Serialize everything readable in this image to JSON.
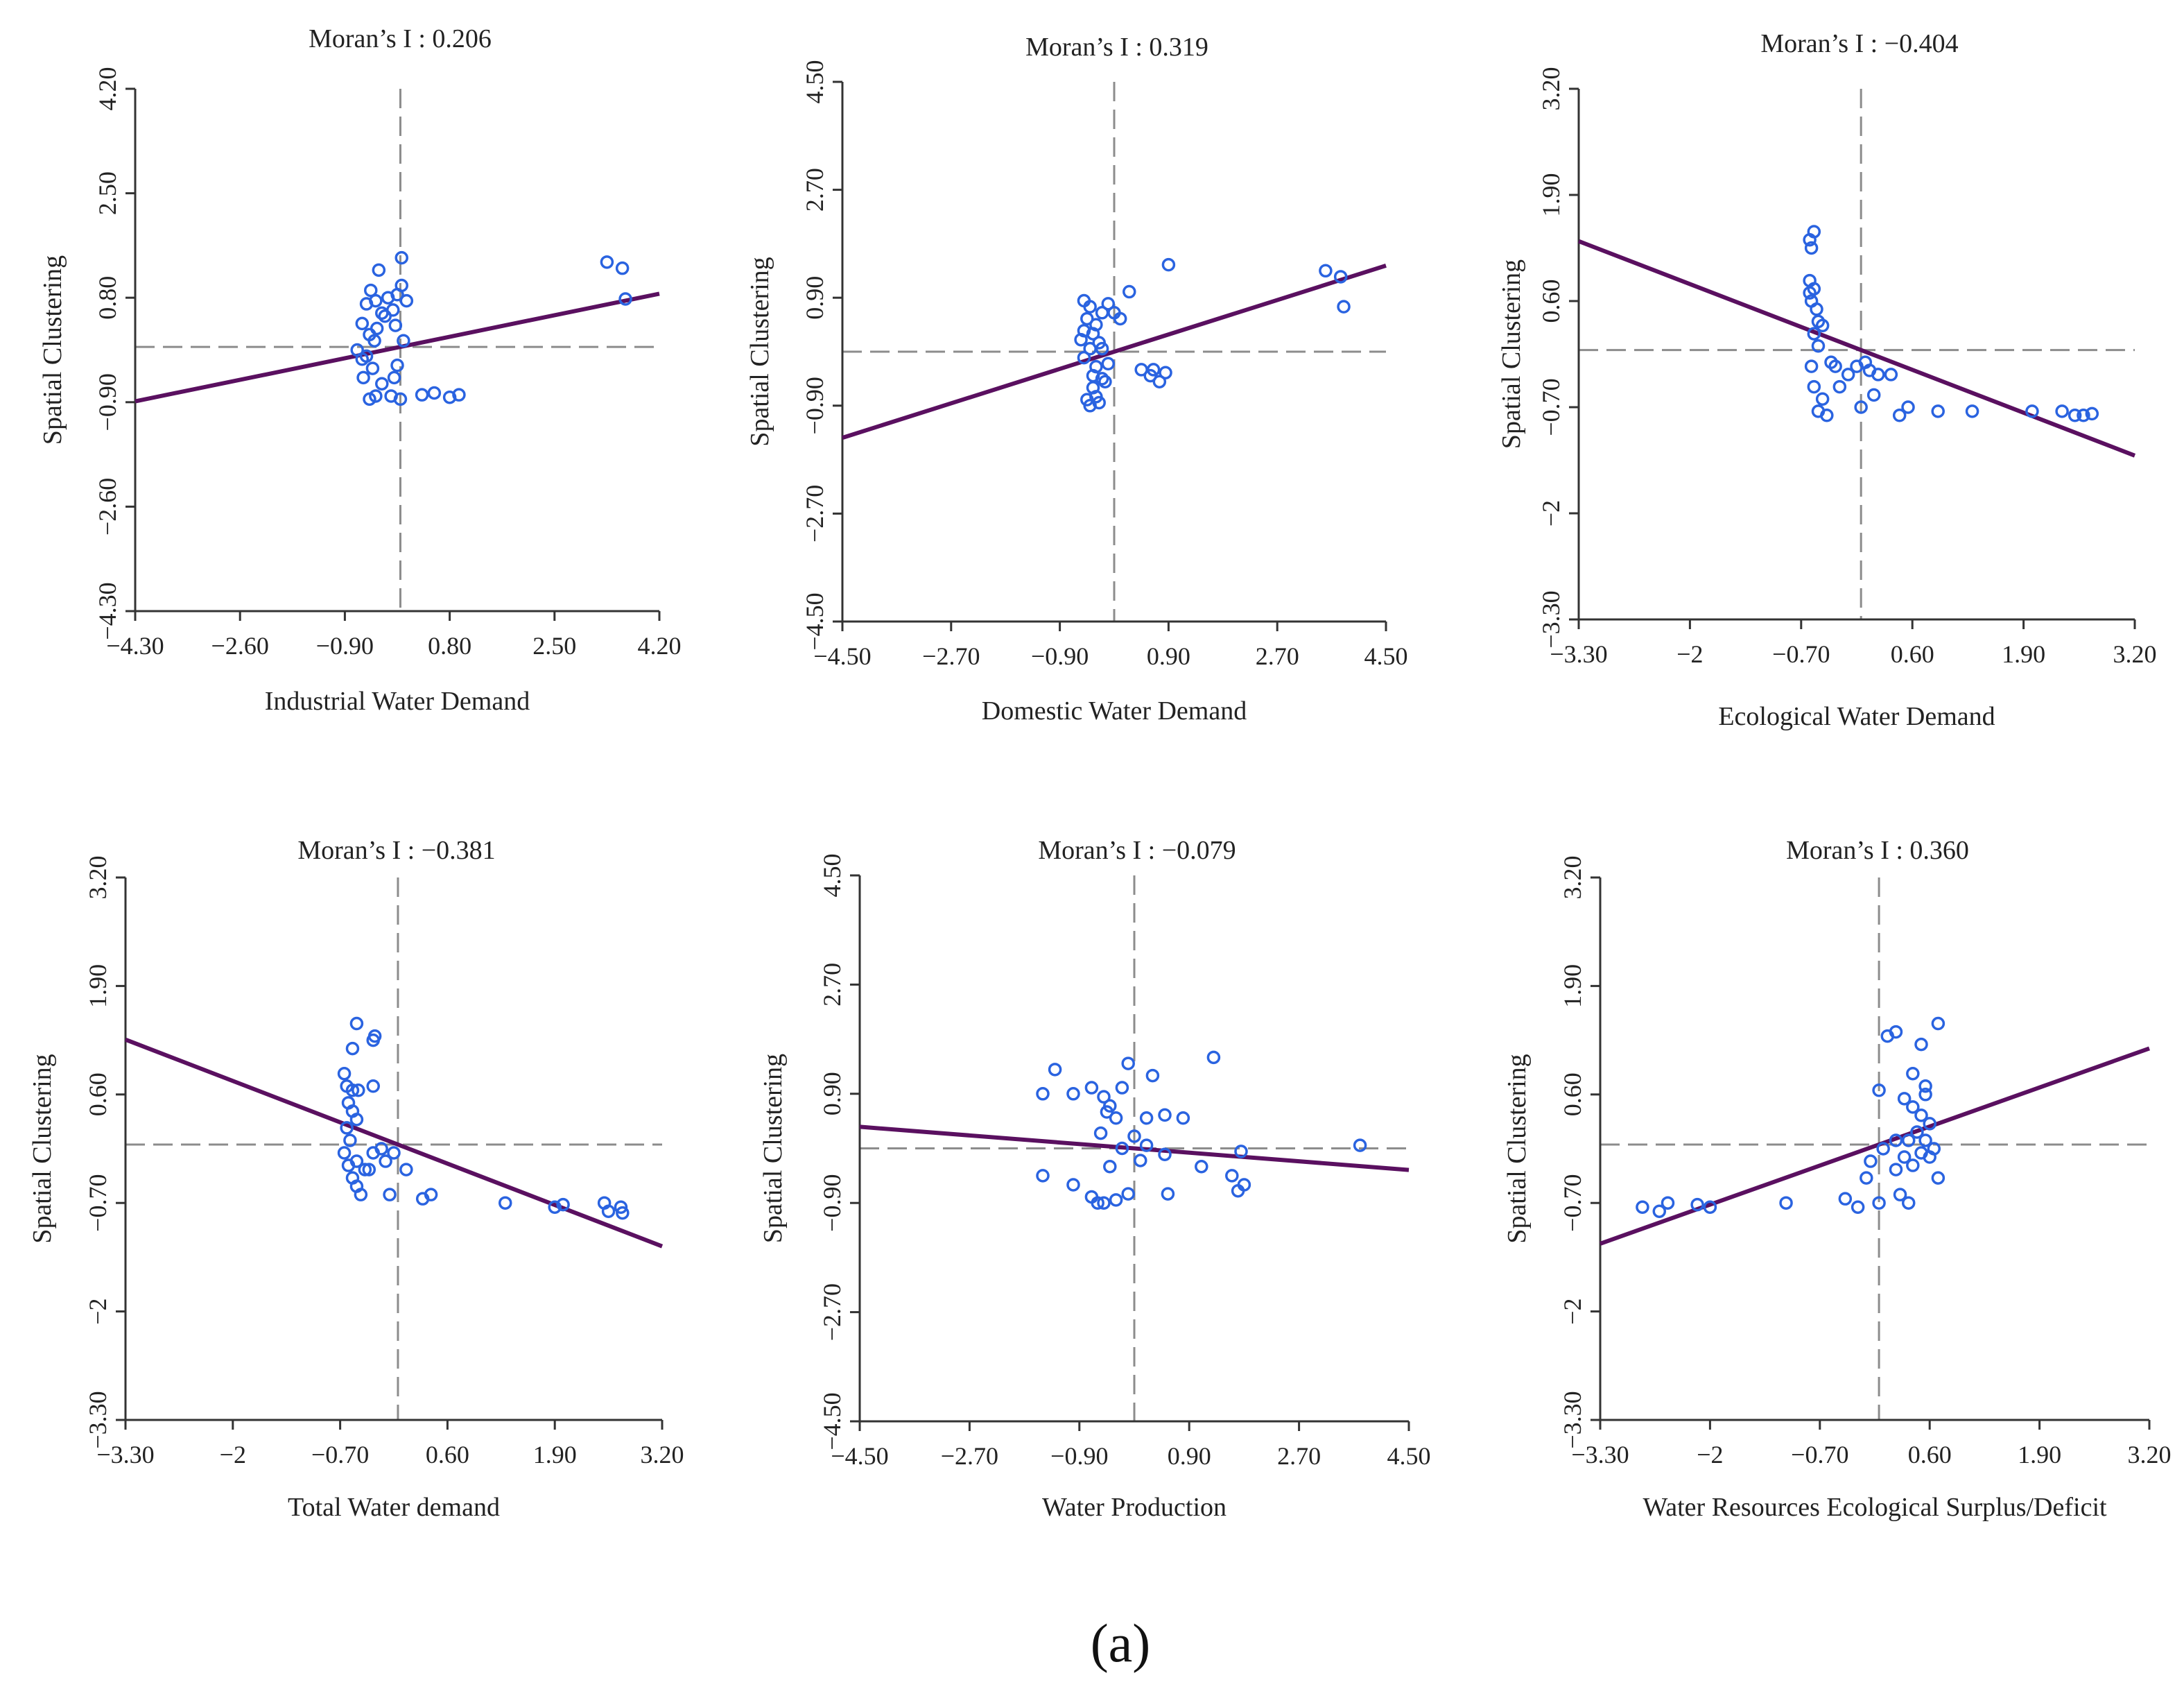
{
  "figure": {
    "caption": "(a)"
  },
  "chart_data": [
    {
      "type": "scatter",
      "title": "Moran’s I : 0.206",
      "xlabel": "Industrial Water Demand",
      "ylabel": "Spatial Clustering",
      "xlim": [
        -4.3,
        4.2
      ],
      "ylim": [
        -4.3,
        4.2
      ],
      "xticks": [
        "−4.30",
        "−2.60",
        "−0.90",
        "0.80",
        "2.50",
        "4.20"
      ],
      "yticks": [
        "−4.30",
        "−2.60",
        "−0.90",
        "0.80",
        "2.50",
        "4.20"
      ],
      "ref_x": 0,
      "ref_y": 0,
      "fit": {
        "slope": 0.206,
        "intercept": 0
      },
      "points": [
        [
          -0.62,
          0.38
        ],
        [
          -0.55,
          0.7
        ],
        [
          -0.48,
          0.92
        ],
        [
          -0.4,
          0.75
        ],
        [
          -0.35,
          1.25
        ],
        [
          -0.3,
          0.55
        ],
        [
          -0.2,
          0.8
        ],
        [
          -0.12,
          0.6
        ],
        [
          -0.05,
          0.85
        ],
        [
          0.02,
          1.0
        ],
        [
          0.1,
          0.75
        ],
        [
          -0.5,
          0.2
        ],
        [
          -0.42,
          0.1
        ],
        [
          -0.55,
          -0.15
        ],
        [
          -0.45,
          -0.35
        ],
        [
          -0.6,
          -0.5
        ],
        [
          -0.7,
          -0.05
        ],
        [
          -0.3,
          -0.6
        ],
        [
          -0.15,
          -0.8
        ],
        [
          -0.5,
          -0.85
        ],
        [
          -0.4,
          -0.8
        ],
        [
          0.0,
          -0.85
        ],
        [
          -0.1,
          -0.5
        ],
        [
          -0.05,
          -0.3
        ],
        [
          0.05,
          0.1
        ],
        [
          0.02,
          1.45
        ],
        [
          0.35,
          -0.78
        ],
        [
          0.55,
          -0.75
        ],
        [
          0.8,
          -0.82
        ],
        [
          0.95,
          -0.78
        ],
        [
          -0.62,
          -0.2
        ],
        [
          -0.38,
          0.3
        ],
        [
          -0.25,
          0.5
        ],
        [
          -0.08,
          0.35
        ],
        [
          3.35,
          1.38
        ],
        [
          3.6,
          1.28
        ],
        [
          3.65,
          0.78
        ]
      ]
    },
    {
      "type": "scatter",
      "title": "Moran’s I : 0.319",
      "xlabel": "Domestic Water Demand",
      "ylabel": "Spatial Clustering",
      "xlim": [
        -4.5,
        4.5
      ],
      "ylim": [
        -4.5,
        4.5
      ],
      "xticks": [
        "−4.50",
        "−2.70",
        "−0.90",
        "0.90",
        "2.70",
        "4.50"
      ],
      "yticks": [
        "−4.50",
        "−2.70",
        "−0.90",
        "0.90",
        "2.70",
        "4.50"
      ],
      "ref_x": 0,
      "ref_y": 0,
      "fit": {
        "slope": 0.319,
        "intercept": 0
      },
      "points": [
        [
          -0.5,
          0.85
        ],
        [
          -0.4,
          0.75
        ],
        [
          -0.45,
          0.55
        ],
        [
          -0.3,
          0.45
        ],
        [
          -0.2,
          0.65
        ],
        [
          -0.1,
          0.8
        ],
        [
          0.0,
          0.65
        ],
        [
          -0.35,
          0.3
        ],
        [
          -0.25,
          0.15
        ],
        [
          -0.4,
          0.05
        ],
        [
          -0.5,
          -0.1
        ],
        [
          -0.3,
          -0.25
        ],
        [
          -0.2,
          -0.45
        ],
        [
          -0.35,
          -0.6
        ],
        [
          -0.45,
          -0.8
        ],
        [
          -0.25,
          -0.85
        ],
        [
          -0.4,
          -0.9
        ],
        [
          -0.3,
          -0.75
        ],
        [
          -0.15,
          -0.5
        ],
        [
          -0.1,
          -0.2
        ],
        [
          -0.55,
          0.2
        ],
        [
          -0.5,
          0.35
        ],
        [
          0.1,
          0.55
        ],
        [
          0.25,
          1.0
        ],
        [
          0.6,
          -0.4
        ],
        [
          0.45,
          -0.3
        ],
        [
          0.75,
          -0.5
        ],
        [
          0.65,
          -0.3
        ],
        [
          0.85,
          -0.35
        ],
        [
          0.9,
          1.45
        ],
        [
          -0.35,
          -0.4
        ],
        [
          -0.2,
          0.05
        ],
        [
          3.5,
          1.35
        ],
        [
          3.75,
          1.25
        ],
        [
          3.8,
          0.75
        ]
      ]
    },
    {
      "type": "scatter",
      "title": "Moran’s I : −0.404",
      "xlabel": "Ecological Water Demand",
      "ylabel": "Spatial Clustering",
      "xlim": [
        -3.3,
        3.2
      ],
      "ylim": [
        -3.3,
        3.2
      ],
      "xticks": [
        "−3.30",
        "−2",
        "−0.70",
        "0.60",
        "1.90",
        "3.20"
      ],
      "yticks": [
        "−3.30",
        "−2",
        "−0.70",
        "0.60",
        "1.90",
        "3.20"
      ],
      "ref_x": 0,
      "ref_y": 0,
      "fit": {
        "slope": -0.404,
        "intercept": 0
      },
      "points": [
        [
          -0.55,
          1.45
        ],
        [
          -0.6,
          1.35
        ],
        [
          -0.58,
          1.25
        ],
        [
          -0.6,
          0.85
        ],
        [
          -0.55,
          0.75
        ],
        [
          -0.58,
          0.6
        ],
        [
          -0.52,
          0.5
        ],
        [
          -0.5,
          0.35
        ],
        [
          -0.45,
          0.3
        ],
        [
          -0.55,
          0.2
        ],
        [
          -0.5,
          0.05
        ],
        [
          -0.58,
          -0.2
        ],
        [
          -0.55,
          -0.45
        ],
        [
          -0.45,
          -0.6
        ],
        [
          -0.5,
          -0.75
        ],
        [
          -0.4,
          -0.8
        ],
        [
          -0.3,
          -0.2
        ],
        [
          -0.15,
          -0.3
        ],
        [
          -0.05,
          -0.2
        ],
        [
          0.05,
          -0.15
        ],
        [
          0.1,
          -0.25
        ],
        [
          0.2,
          -0.3
        ],
        [
          0.15,
          -0.55
        ],
        [
          0.35,
          -0.3
        ],
        [
          -0.35,
          -0.15
        ],
        [
          -0.25,
          -0.45
        ],
        [
          -0.6,
          0.7
        ],
        [
          0.0,
          -0.7
        ],
        [
          0.45,
          -0.8
        ],
        [
          0.55,
          -0.7
        ],
        [
          0.9,
          -0.75
        ],
        [
          1.3,
          -0.75
        ],
        [
          2.0,
          -0.75
        ],
        [
          2.35,
          -0.75
        ],
        [
          2.5,
          -0.8
        ],
        [
          2.6,
          -0.8
        ],
        [
          2.7,
          -0.78
        ]
      ]
    },
    {
      "type": "scatter",
      "title": "Moran’s I : −0.381",
      "xlabel": "Total Water demand",
      "ylabel": "Spatial Clustering",
      "xlim": [
        -3.3,
        3.2
      ],
      "ylim": [
        -3.3,
        3.2
      ],
      "xticks": [
        "−3.30",
        "−2",
        "−0.70",
        "0.60",
        "1.90",
        "3.20"
      ],
      "yticks": [
        "−3.30",
        "−2",
        "−0.70",
        "0.60",
        "1.90",
        "3.20"
      ],
      "ref_x": 0,
      "ref_y": 0,
      "fit": {
        "slope": -0.381,
        "intercept": 0
      },
      "points": [
        [
          -0.5,
          1.45
        ],
        [
          -0.55,
          1.15
        ],
        [
          -0.28,
          1.3
        ],
        [
          -0.3,
          1.25
        ],
        [
          -0.65,
          0.85
        ],
        [
          -0.62,
          0.7
        ],
        [
          -0.55,
          0.65
        ],
        [
          -0.48,
          0.65
        ],
        [
          -0.6,
          0.5
        ],
        [
          -0.55,
          0.4
        ],
        [
          -0.5,
          0.3
        ],
        [
          -0.62,
          0.2
        ],
        [
          -0.58,
          0.05
        ],
        [
          -0.65,
          -0.1
        ],
        [
          -0.5,
          -0.2
        ],
        [
          -0.4,
          -0.3
        ],
        [
          -0.55,
          -0.4
        ],
        [
          -0.5,
          -0.5
        ],
        [
          -0.45,
          -0.6
        ],
        [
          -0.6,
          -0.25
        ],
        [
          -0.3,
          -0.1
        ],
        [
          -0.2,
          -0.05
        ],
        [
          -0.15,
          -0.2
        ],
        [
          -0.05,
          -0.1
        ],
        [
          0.1,
          -0.3
        ],
        [
          -0.3,
          0.7
        ],
        [
          -0.1,
          -0.6
        ],
        [
          -0.35,
          -0.3
        ],
        [
          0.3,
          -0.65
        ],
        [
          0.4,
          -0.6
        ],
        [
          1.3,
          -0.7
        ],
        [
          1.9,
          -0.75
        ],
        [
          2.0,
          -0.72
        ],
        [
          2.5,
          -0.7
        ],
        [
          2.55,
          -0.8
        ],
        [
          2.7,
          -0.75
        ],
        [
          2.72,
          -0.82
        ]
      ]
    },
    {
      "type": "scatter",
      "title": "Moran’s I : −0.079",
      "xlabel": "Water Production",
      "ylabel": "Spatial Clustering",
      "xlim": [
        -4.5,
        4.5
      ],
      "ylim": [
        -4.5,
        4.5
      ],
      "xticks": [
        "−4.50",
        "−2.70",
        "−0.90",
        "0.90",
        "2.70",
        "4.50"
      ],
      "yticks": [
        "−4.50",
        "−2.70",
        "−0.90",
        "0.90",
        "2.70",
        "4.50"
      ],
      "ref_x": 0,
      "ref_y": 0,
      "fit": {
        "slope": -0.079,
        "intercept": 0
      },
      "points": [
        [
          -1.3,
          1.3
        ],
        [
          -1.0,
          0.9
        ],
        [
          -1.5,
          0.9
        ],
        [
          -0.7,
          1.0
        ],
        [
          -0.4,
          0.7
        ],
        [
          -0.2,
          1.0
        ],
        [
          -0.5,
          0.85
        ],
        [
          -0.3,
          0.5
        ],
        [
          0.2,
          0.5
        ],
        [
          0.5,
          0.55
        ],
        [
          0.8,
          0.5
        ],
        [
          0.3,
          1.2
        ],
        [
          -0.1,
          1.4
        ],
        [
          1.3,
          1.5
        ],
        [
          -1.0,
          -0.6
        ],
        [
          -0.7,
          -0.8
        ],
        [
          -0.5,
          -0.9
        ],
        [
          -0.3,
          -0.85
        ],
        [
          -0.1,
          -0.75
        ],
        [
          -0.4,
          -0.3
        ],
        [
          -0.2,
          0.0
        ],
        [
          0.0,
          0.2
        ],
        [
          0.2,
          0.05
        ],
        [
          0.5,
          -0.1
        ],
        [
          -0.55,
          0.25
        ],
        [
          -0.45,
          0.6
        ],
        [
          0.1,
          -0.2
        ],
        [
          1.1,
          -0.3
        ],
        [
          1.6,
          -0.45
        ],
        [
          1.7,
          -0.7
        ],
        [
          1.8,
          -0.6
        ],
        [
          0.55,
          -0.75
        ],
        [
          1.75,
          -0.05
        ],
        [
          -1.5,
          -0.45
        ],
        [
          -0.6,
          -0.9
        ],
        [
          3.7,
          0.05
        ]
      ]
    },
    {
      "type": "scatter",
      "title": "Moran’s I : 0.360",
      "xlabel": "Water Resources Ecological Surplus/Deficit",
      "ylabel": "Spatial Clustering",
      "xlim": [
        -3.3,
        3.2
      ],
      "ylim": [
        -3.3,
        3.2
      ],
      "xticks": [
        "−3.30",
        "−2",
        "−0.70",
        "0.60",
        "1.90",
        "3.20"
      ],
      "yticks": [
        "−3.30",
        "−2",
        "−0.70",
        "0.60",
        "1.90",
        "3.20"
      ],
      "ref_x": 0,
      "ref_y": 0,
      "fit": {
        "slope": 0.36,
        "intercept": 0
      },
      "points": [
        [
          0.0,
          0.65
        ],
        [
          0.1,
          1.3
        ],
        [
          0.2,
          1.35
        ],
        [
          0.5,
          1.2
        ],
        [
          0.7,
          1.45
        ],
        [
          0.4,
          0.85
        ],
        [
          0.55,
          0.7
        ],
        [
          0.55,
          0.6
        ],
        [
          0.3,
          0.55
        ],
        [
          0.4,
          0.45
        ],
        [
          0.5,
          0.35
        ],
        [
          0.6,
          0.25
        ],
        [
          0.45,
          0.15
        ],
        [
          0.35,
          0.05
        ],
        [
          0.5,
          -0.1
        ],
        [
          0.6,
          -0.15
        ],
        [
          0.65,
          -0.05
        ],
        [
          0.2,
          -0.3
        ],
        [
          0.3,
          -0.15
        ],
        [
          0.4,
          -0.25
        ],
        [
          0.7,
          -0.4
        ],
        [
          0.55,
          0.05
        ],
        [
          0.2,
          0.05
        ],
        [
          0.05,
          -0.05
        ],
        [
          -0.1,
          -0.2
        ],
        [
          -0.15,
          -0.4
        ],
        [
          0.25,
          -0.6
        ],
        [
          0.35,
          -0.7
        ],
        [
          -0.4,
          -0.65
        ],
        [
          -0.25,
          -0.75
        ],
        [
          0.0,
          -0.7
        ],
        [
          -1.1,
          -0.7
        ],
        [
          -2.0,
          -0.75
        ],
        [
          -2.15,
          -0.72
        ],
        [
          -2.5,
          -0.7
        ],
        [
          -2.6,
          -0.8
        ],
        [
          -2.8,
          -0.75
        ]
      ]
    }
  ]
}
